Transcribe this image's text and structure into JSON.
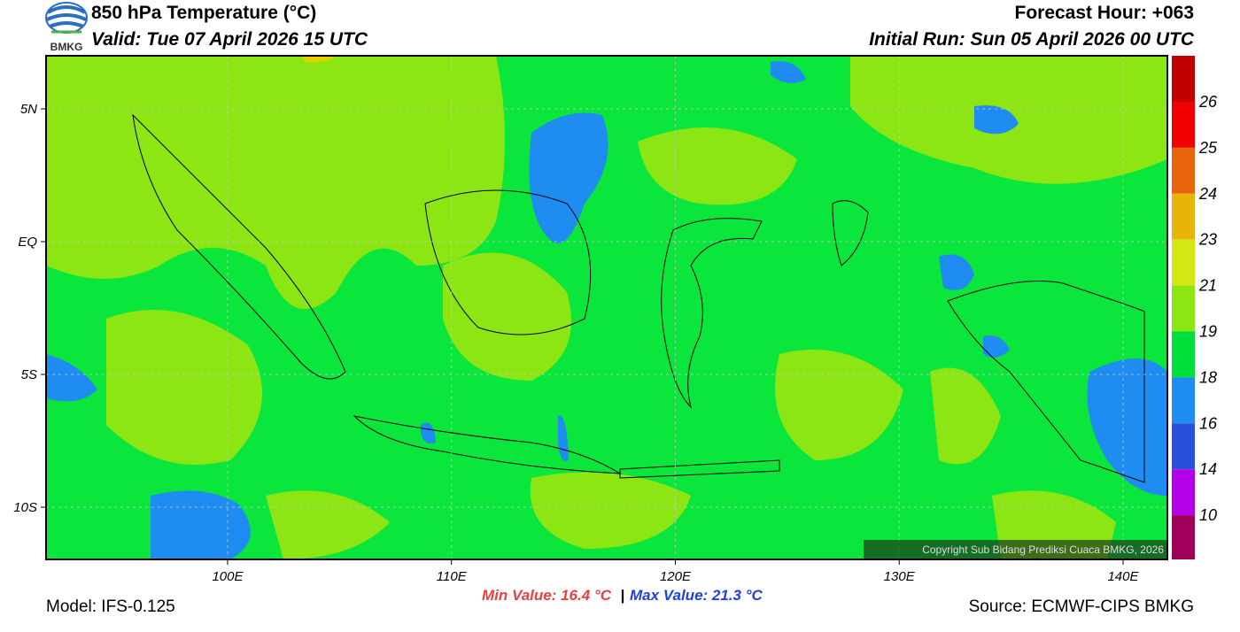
{
  "header": {
    "logo": "BMKG",
    "title": "850 hPa Temperature (°C)",
    "valid": "Valid: Tue 07 April 2026 15 UTC",
    "forecast_hour": "Forecast Hour: +063",
    "initial_run": "Initial Run: Sun 05 April 2026 00 UTC"
  },
  "map": {
    "lon_ticks": [
      "100E",
      "110E",
      "120E",
      "130E",
      "140E"
    ],
    "lat_ticks": [
      "5N",
      "EQ",
      "5S",
      "10S"
    ],
    "copyright": "Copyright Sub Bidang Prediksi Cuaca BMKG, 2026"
  },
  "colorbar": {
    "labels": [
      26,
      25,
      24,
      23,
      21,
      19,
      18,
      16,
      14,
      10
    ],
    "colors": [
      "#c00000",
      "#f00000",
      "#e8650c",
      "#e8b40a",
      "#d4e614",
      "#8ce614",
      "#00e03c",
      "#1e8cf0",
      "#2850dc",
      "#b400e6",
      "#a0005a"
    ]
  },
  "footer": {
    "model": "Model: IFS-0.125",
    "min": "Min Value: 16.4 °C",
    "separator": "|",
    "max": "Max Value: 21.3 °C",
    "source": "Source: ECMWF-CIPS BMKG"
  }
}
